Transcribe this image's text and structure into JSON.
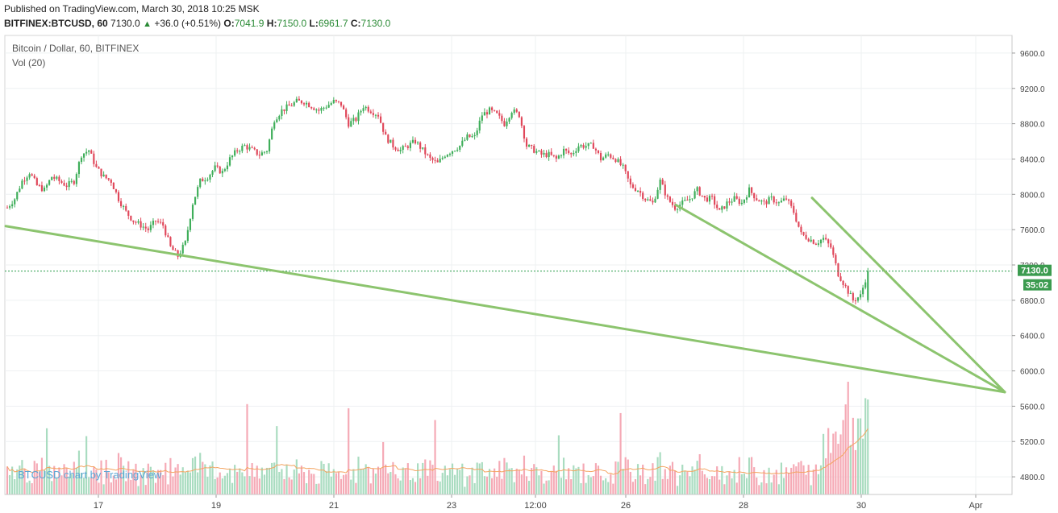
{
  "header": {
    "published": "Published on TradingView.com, March 30, 2018 10:25 MSK",
    "symbol": "BITFINEX:BTCUSD, 60",
    "last": "7130.0",
    "change": "+36.0 (+0.51%)",
    "o_label": "O:",
    "o_value": "7041.9",
    "h_label": "H:",
    "h_value": "7150.0",
    "l_label": "L:",
    "l_value": "6961.7",
    "c_label": "C:",
    "c_value": "7130.0"
  },
  "legend": {
    "title": "Bitcoin / Dollar, 60, BITFINEX",
    "volume": "Vol (20)"
  },
  "watermark": "BTCUSD chart by TradingView",
  "price_badge": "7130.0",
  "timer_badge": "35:02",
  "colors": {
    "up": "#3fae5a",
    "down": "#e0475a",
    "vol_up": "#a9dcc0",
    "vol_down": "#f5a9b5",
    "trend": "#8cc46e",
    "vol_ma": "#f4a460",
    "price_line": "#2a9d4a"
  },
  "chart_data": {
    "type": "candlestick",
    "y_axis": {
      "ticks": [
        4800,
        5200,
        5600,
        6000,
        6400,
        6800,
        7200,
        7600,
        8000,
        8400,
        8800,
        9200,
        9600
      ],
      "tick_labels": [
        "4800.0",
        "5200.0",
        "5600.0",
        "6000.0",
        "6400.0",
        "6800.0",
        "7200.0",
        "7600.0",
        "8000.0",
        "8400.0",
        "8800.0",
        "9200.0",
        "9600.0"
      ],
      "range": [
        4600,
        9800
      ]
    },
    "x_axis": {
      "tick_labels": [
        "17",
        "19",
        "21",
        "23",
        "12:00",
        "26",
        "28",
        "30",
        "Apr"
      ]
    },
    "last_price": 7130.0,
    "close_path": [
      [
        0,
        7850
      ],
      [
        3,
        7950
      ],
      [
        6,
        8150
      ],
      [
        9,
        8250
      ],
      [
        12,
        8100
      ],
      [
        15,
        8050
      ],
      [
        18,
        8200
      ],
      [
        21,
        8150
      ],
      [
        24,
        8100
      ],
      [
        27,
        8150
      ],
      [
        30,
        8450
      ],
      [
        33,
        8500
      ],
      [
        36,
        8300
      ],
      [
        39,
        8200
      ],
      [
        42,
        8150
      ],
      [
        45,
        7950
      ],
      [
        48,
        7800
      ],
      [
        51,
        7700
      ],
      [
        54,
        7650
      ],
      [
        57,
        7600
      ],
      [
        60,
        7700
      ],
      [
        63,
        7650
      ],
      [
        66,
        7400
      ],
      [
        69,
        7300
      ],
      [
        72,
        7450
      ],
      [
        75,
        7900
      ],
      [
        78,
        8150
      ],
      [
        81,
        8200
      ],
      [
        84,
        8300
      ],
      [
        87,
        8250
      ],
      [
        90,
        8400
      ],
      [
        93,
        8500
      ],
      [
        96,
        8550
      ],
      [
        99,
        8500
      ],
      [
        102,
        8450
      ],
      [
        105,
        8500
      ],
      [
        108,
        8850
      ],
      [
        111,
        8950
      ],
      [
        114,
        9000
      ],
      [
        117,
        9050
      ],
      [
        120,
        9050
      ],
      [
        123,
        9000
      ],
      [
        126,
        8950
      ],
      [
        129,
        9000
      ],
      [
        132,
        9050
      ],
      [
        135,
        9020
      ],
      [
        138,
        8800
      ],
      [
        141,
        8850
      ],
      [
        144,
        9000
      ],
      [
        147,
        8950
      ],
      [
        150,
        8900
      ],
      [
        153,
        8650
      ],
      [
        156,
        8550
      ],
      [
        159,
        8500
      ],
      [
        162,
        8550
      ],
      [
        165,
        8600
      ],
      [
        168,
        8500
      ],
      [
        171,
        8400
      ],
      [
        174,
        8350
      ],
      [
        177,
        8450
      ],
      [
        180,
        8500
      ],
      [
        183,
        8550
      ],
      [
        186,
        8650
      ],
      [
        189,
        8650
      ],
      [
        192,
        8900
      ],
      [
        195,
        8950
      ],
      [
        198,
        8900
      ],
      [
        201,
        8800
      ],
      [
        204,
        8950
      ],
      [
        207,
        8900
      ],
      [
        210,
        8550
      ],
      [
        213,
        8500
      ],
      [
        216,
        8450
      ],
      [
        219,
        8450
      ],
      [
        222,
        8400
      ],
      [
        225,
        8500
      ],
      [
        228,
        8450
      ],
      [
        231,
        8550
      ],
      [
        234,
        8550
      ],
      [
        237,
        8550
      ],
      [
        240,
        8400
      ],
      [
        243,
        8450
      ],
      [
        246,
        8400
      ],
      [
        249,
        8300
      ],
      [
        252,
        8100
      ],
      [
        255,
        8050
      ],
      [
        258,
        7950
      ],
      [
        261,
        7900
      ],
      [
        264,
        8150
      ],
      [
        267,
        7950
      ],
      [
        270,
        7850
      ],
      [
        273,
        7900
      ],
      [
        276,
        7950
      ],
      [
        279,
        8050
      ],
      [
        282,
        7950
      ],
      [
        285,
        7950
      ],
      [
        288,
        7800
      ],
      [
        291,
        7900
      ],
      [
        294,
        7950
      ],
      [
        297,
        7900
      ],
      [
        300,
        8050
      ],
      [
        303,
        7950
      ],
      [
        306,
        7900
      ],
      [
        309,
        7950
      ],
      [
        312,
        7900
      ],
      [
        315,
        7950
      ],
      [
        318,
        7800
      ],
      [
        321,
        7550
      ],
      [
        324,
        7500
      ],
      [
        327,
        7450
      ],
      [
        330,
        7500
      ],
      [
        333,
        7400
      ],
      [
        336,
        7100
      ],
      [
        339,
        6950
      ],
      [
        342,
        6800
      ],
      [
        345,
        6850
      ],
      [
        348,
        7130
      ]
    ],
    "trendlines": [
      {
        "from": [
          "start",
          7640
        ],
        "to": [
          "apex",
          5760
        ]
      },
      {
        "from": [
          "day27",
          7880
        ],
        "to": [
          "apex",
          5760
        ]
      },
      {
        "from": [
          "day29",
          7960
        ],
        "to": [
          "apex",
          5760
        ]
      }
    ]
  }
}
